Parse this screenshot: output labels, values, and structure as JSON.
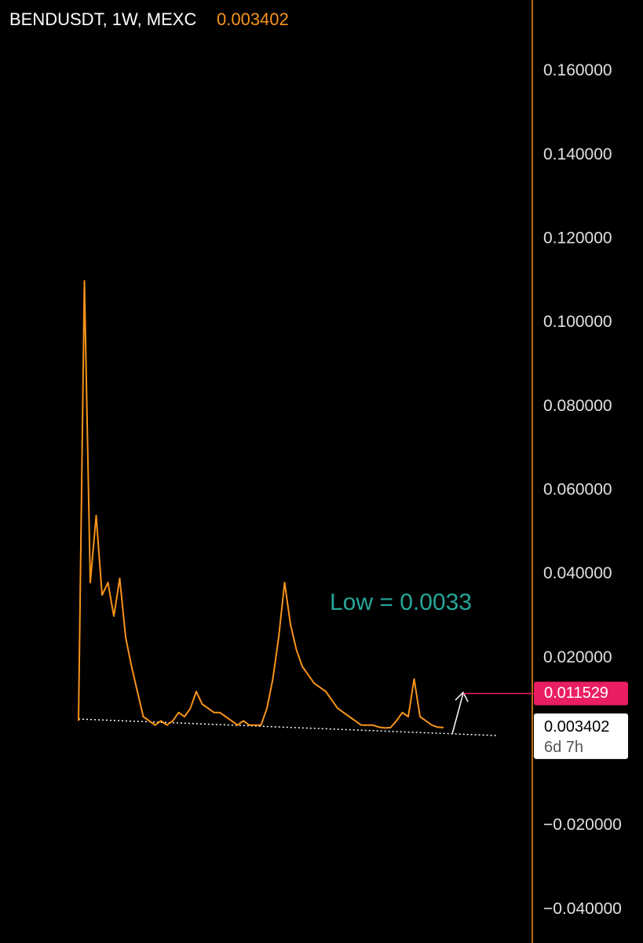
{
  "chart_data": {
    "type": "line",
    "title": "BENDUSDT, 1W, MEXC",
    "title_price": "0.003402",
    "color": "#f7931a",
    "values": [
      0.005,
      0.11,
      0.038,
      0.054,
      0.035,
      0.038,
      0.03,
      0.039,
      0.025,
      0.018,
      0.012,
      0.006,
      0.005,
      0.004,
      0.005,
      0.004,
      0.005,
      0.007,
      0.006,
      0.008,
      0.012,
      0.009,
      0.008,
      0.007,
      0.007,
      0.006,
      0.005,
      0.004,
      0.005,
      0.004,
      0.004,
      0.004,
      0.008,
      0.015,
      0.025,
      0.038,
      0.028,
      0.022,
      0.018,
      0.016,
      0.014,
      0.013,
      0.012,
      0.01,
      0.008,
      0.007,
      0.006,
      0.005,
      0.004,
      0.004,
      0.004,
      0.0035,
      0.0033,
      0.0034,
      0.005,
      0.007,
      0.006,
      0.015,
      0.006,
      0.005,
      0.004,
      0.0035,
      0.0034
    ],
    "ylim": [
      -0.048,
      0.177
    ],
    "yticks": [
      {
        "value": 0.16,
        "label": "0.160000"
      },
      {
        "value": 0.14,
        "label": "0.140000"
      },
      {
        "value": 0.12,
        "label": "0.120000"
      },
      {
        "value": 0.1,
        "label": "0.100000"
      },
      {
        "value": 0.08,
        "label": "0.080000"
      },
      {
        "value": 0.06,
        "label": "0.060000"
      },
      {
        "value": 0.04,
        "label": "0.040000"
      },
      {
        "value": 0.02,
        "label": "0.020000"
      },
      {
        "value": -0.02,
        "label": "−0.020000"
      },
      {
        "value": -0.04,
        "label": "−0.040000"
      }
    ],
    "annotation": "Low = 0.0033",
    "marked_price": {
      "value": 0.011529,
      "label": "0.011529",
      "color": "#e91e63"
    },
    "last_price": {
      "value": 0.003402,
      "label": "0.003402"
    },
    "countdown": "6d 7h"
  }
}
